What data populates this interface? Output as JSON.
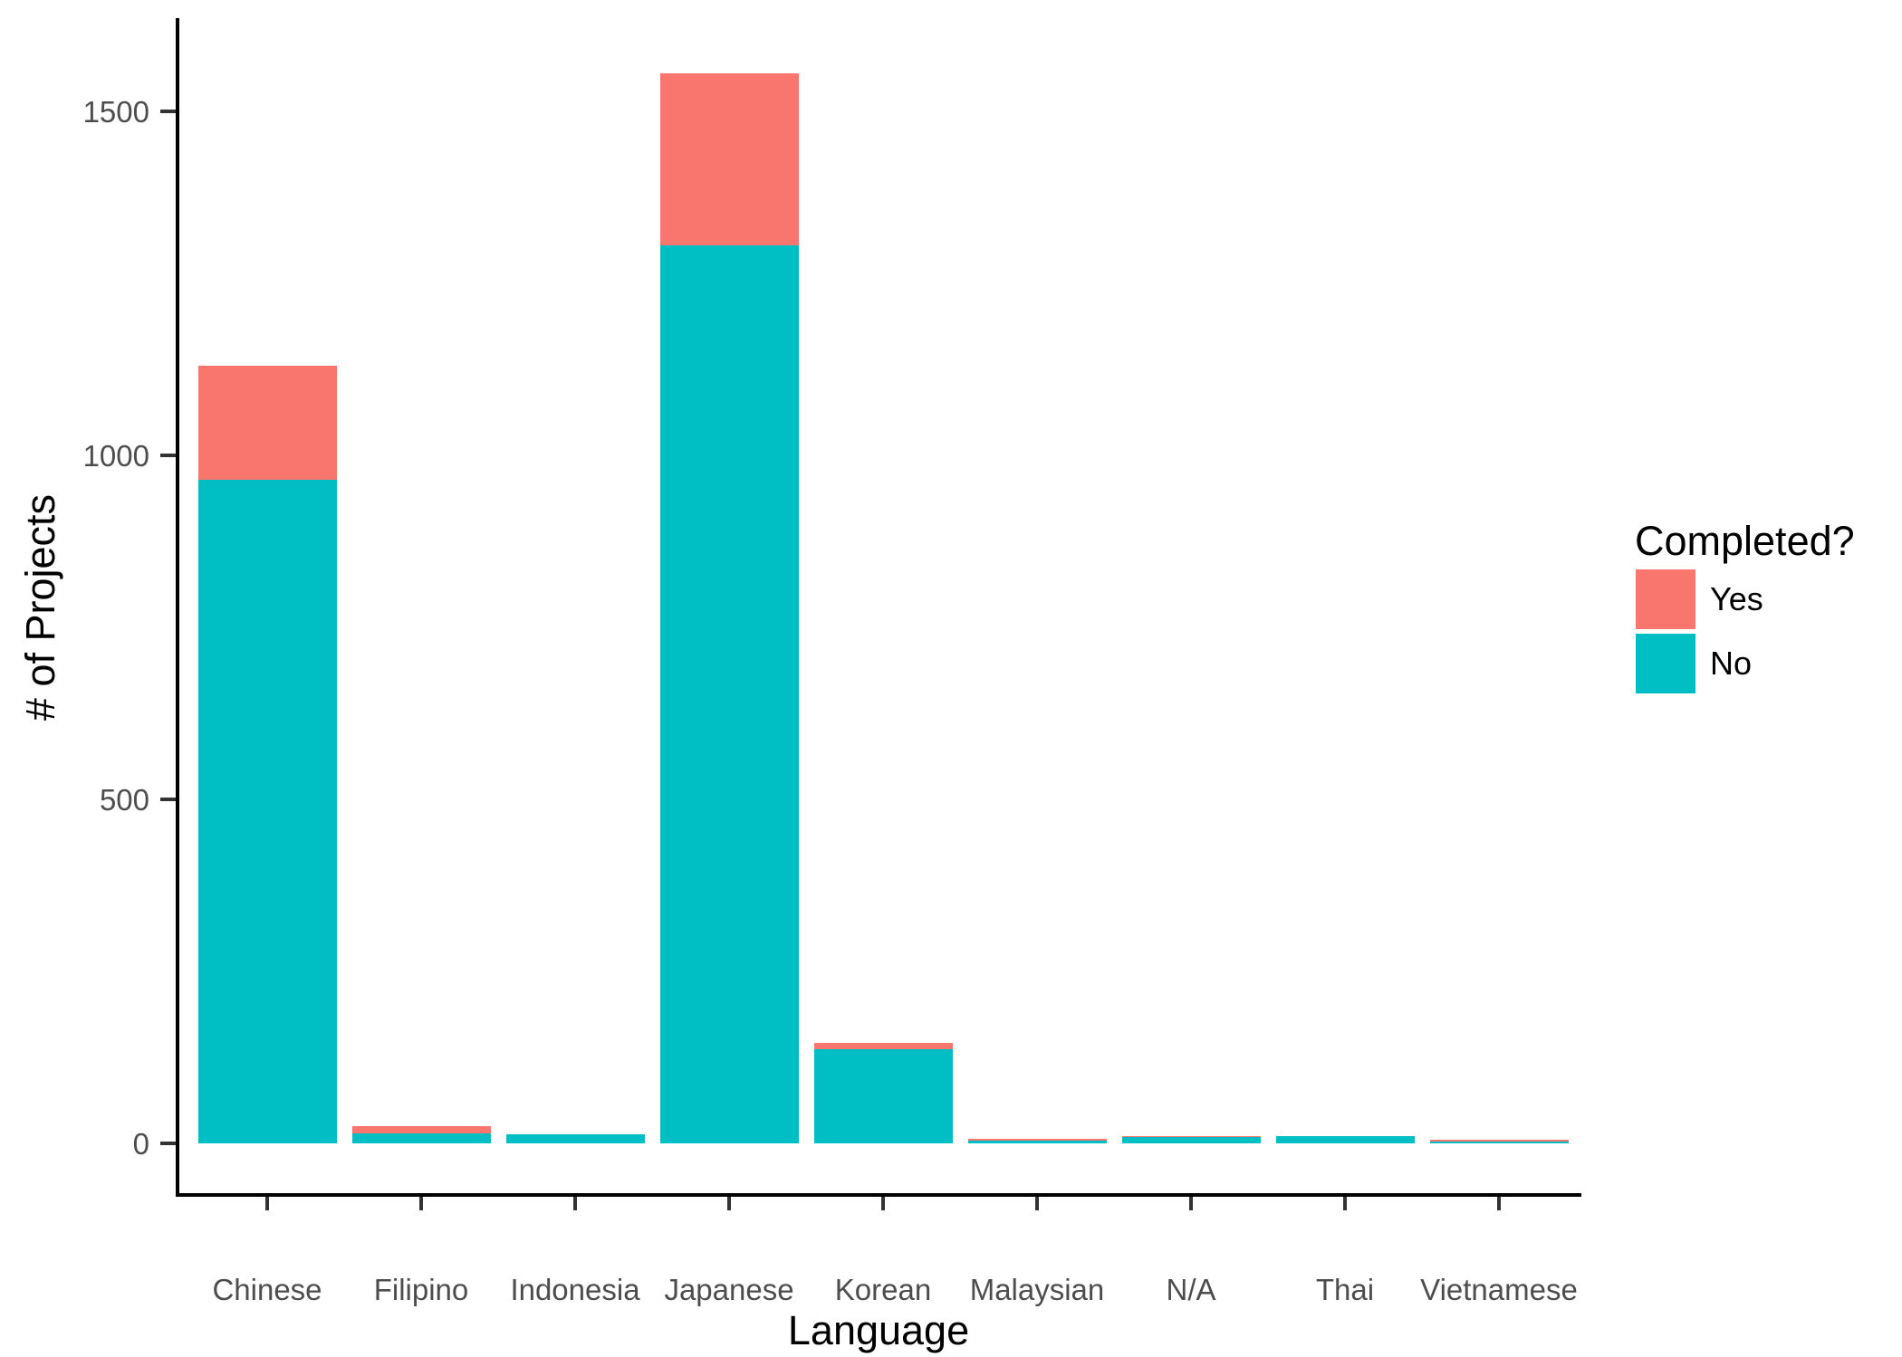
{
  "chart_data": {
    "type": "bar",
    "stacked": true,
    "title": "",
    "xlabel": "Language",
    "ylabel": "# of Projects",
    "categories": [
      "Chinese",
      "Filipino",
      "Indonesia",
      "Japanese",
      "Korean",
      "Malaysian",
      "N/A",
      "Thai",
      "Vietnamese"
    ],
    "series": [
      {
        "name": "No",
        "color": "#00BFC4",
        "values": [
          965,
          15,
          13,
          1305,
          137,
          4,
          9,
          10,
          2
        ]
      },
      {
        "name": "Yes",
        "color": "#F8766D",
        "values": [
          165,
          10,
          0,
          250,
          9,
          3,
          2,
          0,
          3
        ]
      }
    ],
    "legend": {
      "title": "Completed?",
      "position": "right",
      "entries": [
        {
          "label": "Yes",
          "color": "#F8766D"
        },
        {
          "label": "No",
          "color": "#00BFC4"
        }
      ]
    },
    "y_ticks": [
      0,
      500,
      1000,
      1500
    ],
    "ylim": [
      0,
      1630
    ],
    "grid": false
  },
  "colors": {
    "axis_text": "#4d4d4d",
    "axis_line": "#000000",
    "background": "#ffffff",
    "yes": "#F8766D",
    "no": "#00BFC4"
  }
}
